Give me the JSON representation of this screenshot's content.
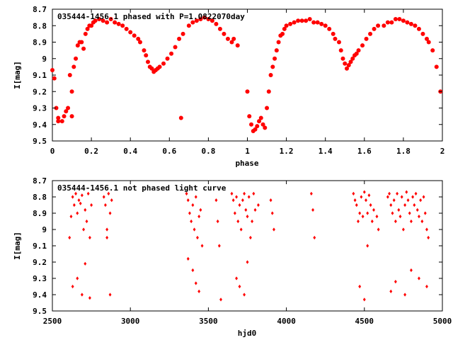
{
  "chart_data": [
    {
      "type": "scatter",
      "title": "035444-1456.1  phased with P=1.0822070day",
      "xlabel": "phase",
      "ylabel": "I[mag]",
      "xlim": [
        0,
        2
      ],
      "ylim": [
        9.5,
        8.7
      ],
      "y_inverted": true,
      "xticks": [
        "0",
        "0.2",
        "0.4",
        "0.6",
        "0.8",
        "1",
        "1.2",
        "1.4",
        "1.6",
        "1.8",
        "2"
      ],
      "yticks": [
        "8.7",
        "8.8",
        "8.9",
        "9",
        "9.1",
        "9.2",
        "9.3",
        "9.4",
        "9.5"
      ],
      "marker_color": "#ff0000",
      "marker": "filled circle",
      "series_points": {
        "phase": [
          0.0,
          0.01,
          0.02,
          0.03,
          0.03,
          0.05,
          0.06,
          0.07,
          0.08,
          0.09,
          0.1,
          0.1,
          0.11,
          0.12,
          0.13,
          0.14,
          0.15,
          0.16,
          0.17,
          0.18,
          0.19,
          0.2,
          0.21,
          0.22,
          0.24,
          0.26,
          0.28,
          0.3,
          0.32,
          0.34,
          0.36,
          0.38,
          0.4,
          0.42,
          0.44,
          0.45,
          0.47,
          0.48,
          0.49,
          0.5,
          0.51,
          0.52,
          0.53,
          0.54,
          0.55,
          0.57,
          0.59,
          0.61,
          0.63,
          0.65,
          0.66,
          0.67,
          0.7,
          0.72,
          0.74,
          0.76,
          0.78,
          0.8,
          0.82,
          0.84,
          0.86,
          0.88,
          0.9,
          0.92,
          0.93,
          0.95,
          1.0,
          1.01,
          1.02,
          1.03,
          1.04,
          1.05,
          1.06,
          1.07,
          1.08,
          1.09,
          1.1,
          1.11,
          1.12,
          1.13,
          1.14,
          1.15,
          1.16,
          1.17,
          1.18,
          1.19,
          1.2,
          1.22,
          1.24,
          1.26,
          1.28,
          1.3,
          1.32,
          1.34,
          1.36,
          1.38,
          1.4,
          1.42,
          1.44,
          1.45,
          1.47,
          1.48,
          1.49,
          1.5,
          1.51,
          1.52,
          1.53,
          1.54,
          1.55,
          1.56,
          1.57,
          1.59,
          1.61,
          1.63,
          1.65,
          1.67,
          1.7,
          1.72,
          1.74,
          1.76,
          1.78,
          1.8,
          1.82,
          1.84,
          1.86,
          1.88,
          1.9,
          1.92,
          1.93,
          1.95,
          1.97,
          1.99
        ],
        "mag": [
          9.07,
          9.12,
          9.3,
          9.36,
          9.38,
          9.38,
          9.35,
          9.32,
          9.3,
          9.1,
          9.2,
          9.35,
          9.05,
          9.0,
          8.92,
          8.9,
          8.9,
          8.94,
          8.85,
          8.82,
          8.8,
          8.8,
          8.78,
          8.77,
          8.76,
          8.77,
          8.78,
          8.76,
          8.78,
          8.79,
          8.8,
          8.82,
          8.84,
          8.86,
          8.88,
          8.9,
          8.95,
          8.98,
          9.02,
          9.05,
          9.06,
          9.08,
          9.07,
          9.06,
          9.05,
          9.03,
          9.0,
          8.97,
          8.93,
          8.88,
          9.36,
          8.85,
          8.8,
          8.78,
          8.77,
          8.76,
          8.75,
          8.76,
          8.77,
          8.79,
          8.82,
          8.85,
          8.88,
          8.9,
          8.88,
          8.92,
          9.2,
          9.35,
          9.4,
          9.44,
          9.43,
          9.41,
          9.38,
          9.36,
          9.4,
          9.42,
          9.3,
          9.2,
          9.1,
          9.05,
          9.0,
          8.95,
          8.9,
          8.86,
          8.85,
          8.82,
          8.8,
          8.79,
          8.78,
          8.77,
          8.77,
          8.77,
          8.76,
          8.78,
          8.78,
          8.79,
          8.8,
          8.82,
          8.85,
          8.88,
          8.9,
          8.95,
          9.0,
          9.03,
          9.06,
          9.04,
          9.02,
          9.0,
          8.98,
          8.97,
          8.95,
          8.92,
          8.88,
          8.85,
          8.82,
          8.8,
          8.8,
          8.78,
          8.78,
          8.76,
          8.76,
          8.77,
          8.78,
          8.79,
          8.8,
          8.82,
          8.85,
          8.88,
          8.9,
          8.95,
          9.05,
          9.2
        ]
      }
    },
    {
      "type": "scatter",
      "title": "035444-1456.1 not phased light curve",
      "xlabel": "hjd0",
      "ylabel": "I[mag]",
      "xlim": [
        2500,
        5000
      ],
      "ylim": [
        9.5,
        8.7
      ],
      "y_inverted": true,
      "xticks": [
        "2500",
        "3000",
        "3500",
        "4000",
        "4500",
        "5000"
      ],
      "yticks": [
        "8.7",
        "8.8",
        "8.9",
        "9",
        "9.1",
        "9.2",
        "9.3",
        "9.4",
        "9.5"
      ],
      "marker_color": "#ff0000",
      "marker": "filled diamond",
      "series_points": {
        "hjd0": [
          2610,
          2620,
          2630,
          2640,
          2650,
          2660,
          2670,
          2680,
          2690,
          2700,
          2710,
          2720,
          2730,
          2740,
          2750,
          2630,
          2660,
          2690,
          2710,
          2740,
          2830,
          2840,
          2850,
          2860,
          2870,
          2880,
          2850,
          2870,
          3360,
          3370,
          3380,
          3390,
          3400,
          3410,
          3420,
          3430,
          3440,
          3450,
          3460,
          3370,
          3400,
          3420,
          3440,
          3550,
          3560,
          3570,
          3580,
          3650,
          3660,
          3670,
          3680,
          3690,
          3700,
          3710,
          3720,
          3730,
          3740,
          3750,
          3760,
          3770,
          3780,
          3790,
          3800,
          3820,
          3680,
          3700,
          3730,
          3750,
          3900,
          3910,
          3920,
          4160,
          4170,
          4180,
          4430,
          4440,
          4450,
          4460,
          4470,
          4480,
          4490,
          4500,
          4510,
          4520,
          4530,
          4540,
          4550,
          4560,
          4580,
          4590,
          4470,
          4500,
          4520,
          4650,
          4660,
          4670,
          4680,
          4690,
          4700,
          4710,
          4720,
          4730,
          4740,
          4750,
          4760,
          4770,
          4780,
          4790,
          4800,
          4810,
          4820,
          4830,
          4840,
          4850,
          4860,
          4870,
          4880,
          4890,
          4900,
          4910,
          4670,
          4700,
          4760,
          4800,
          4850,
          4900
        ],
        "mag": [
          9.05,
          8.92,
          8.8,
          8.85,
          8.78,
          8.9,
          8.82,
          8.84,
          8.79,
          9.0,
          8.88,
          8.95,
          8.78,
          9.05,
          8.85,
          9.35,
          9.3,
          9.4,
          9.21,
          9.42,
          8.8,
          8.85,
          9.05,
          8.78,
          8.9,
          8.82,
          9.0,
          9.4,
          8.78,
          8.82,
          8.9,
          8.95,
          8.85,
          9.0,
          8.8,
          9.05,
          8.92,
          8.88,
          9.1,
          9.18,
          9.25,
          9.33,
          9.38,
          8.82,
          8.95,
          9.1,
          9.43,
          8.78,
          8.82,
          8.9,
          8.8,
          8.95,
          8.85,
          9.0,
          8.82,
          8.78,
          8.88,
          8.92,
          8.8,
          9.05,
          8.95,
          8.78,
          8.88,
          8.85,
          9.3,
          9.35,
          9.4,
          9.2,
          8.82,
          8.9,
          9.0,
          8.78,
          8.88,
          9.05,
          8.78,
          8.82,
          8.85,
          8.95,
          8.9,
          8.8,
          8.92,
          8.77,
          8.82,
          8.9,
          8.79,
          8.85,
          8.95,
          8.88,
          8.92,
          9.0,
          9.35,
          9.43,
          9.1,
          8.8,
          8.78,
          8.85,
          8.9,
          8.82,
          8.95,
          8.78,
          8.88,
          8.92,
          8.8,
          9.0,
          8.85,
          8.77,
          8.82,
          8.9,
          8.95,
          8.8,
          8.85,
          8.78,
          8.88,
          8.92,
          8.82,
          8.95,
          8.8,
          8.9,
          9.0,
          9.05,
          9.38,
          9.32,
          9.4,
          9.25,
          9.3,
          9.35
        ]
      }
    }
  ]
}
